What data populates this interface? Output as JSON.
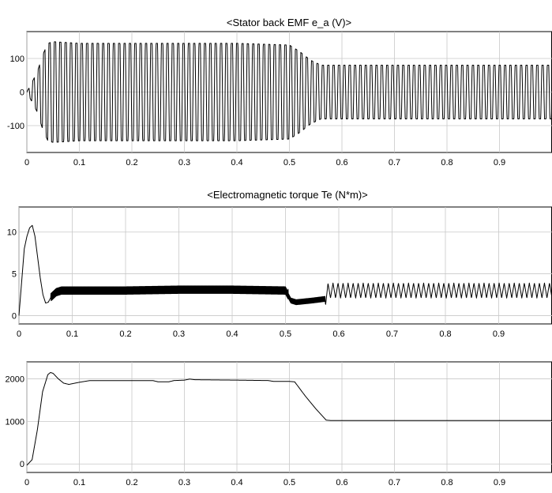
{
  "chart_data": [
    {
      "type": "line",
      "title": "<Stator back EMF e_a (V)>",
      "xlim": [
        0,
        1
      ],
      "ylim": [
        -180,
        180
      ],
      "x_ticks": [
        0,
        0.1,
        0.2,
        0.3,
        0.4,
        0.5,
        0.6,
        0.7,
        0.8,
        0.9
      ],
      "x_tick_labels": [
        "0",
        "0.1",
        "0.2",
        "0.3",
        "0.4",
        "0.5",
        "0.6",
        "0.7",
        "0.8",
        "0.9"
      ],
      "y_ticks": [
        -100,
        0,
        100
      ],
      "y_tick_labels": [
        "-100",
        "0",
        "100"
      ],
      "grid": true,
      "series": [
        {
          "color": "#000000",
          "style": "square-ish oscillation",
          "envelope": [
            [
              0.0,
              0
            ],
            [
              0.01,
              30
            ],
            [
              0.02,
              60
            ],
            [
              0.03,
              110
            ],
            [
              0.04,
              145
            ],
            [
              0.05,
              150
            ],
            [
              0.1,
              145
            ],
            [
              0.2,
              145
            ],
            [
              0.3,
              145
            ],
            [
              0.4,
              145
            ],
            [
              0.5,
              140
            ],
            [
              0.52,
              120
            ],
            [
              0.54,
              95
            ],
            [
              0.56,
              80
            ],
            [
              0.6,
              80
            ],
            [
              0.8,
              80
            ],
            [
              1.0,
              80
            ]
          ],
          "cycles": 98
        }
      ]
    },
    {
      "type": "line",
      "title": "<Electromagnetic torque Te (N*m)>",
      "xlim": [
        0,
        1
      ],
      "ylim": [
        -1,
        13
      ],
      "x_ticks": [
        0,
        0.1,
        0.2,
        0.3,
        0.4,
        0.5,
        0.6,
        0.7,
        0.8,
        0.9
      ],
      "x_tick_labels": [
        "0",
        "0.1",
        "0.2",
        "0.3",
        "0.4",
        "0.5",
        "0.6",
        "0.7",
        "0.8",
        "0.9"
      ],
      "y_ticks": [
        0,
        5,
        10
      ],
      "y_tick_labels": [
        "0",
        "5",
        "10"
      ],
      "grid": true,
      "series": [
        {
          "color": "#000000",
          "points": [
            [
              0.0,
              0
            ],
            [
              0.005,
              4
            ],
            [
              0.01,
              8
            ],
            [
              0.015,
              9.5
            ],
            [
              0.02,
              10.5
            ],
            [
              0.025,
              10.8
            ],
            [
              0.03,
              9.5
            ],
            [
              0.035,
              7
            ],
            [
              0.04,
              4.5
            ],
            [
              0.045,
              2.5
            ],
            [
              0.05,
              1.5
            ],
            [
              0.055,
              1.6
            ],
            [
              0.06,
              2.2
            ],
            [
              0.07,
              2.8
            ],
            [
              0.08,
              3.0
            ],
            [
              0.1,
              3.0
            ],
            [
              0.2,
              3.0
            ],
            [
              0.3,
              3.1
            ],
            [
              0.4,
              3.1
            ],
            [
              0.5,
              3.0
            ],
            [
              0.505,
              2.4
            ],
            [
              0.51,
              1.8
            ],
            [
              0.52,
              1.6
            ],
            [
              0.55,
              1.8
            ],
            [
              0.575,
              2.0
            ],
            [
              0.58,
              3.0
            ],
            [
              1.0,
              3.0
            ]
          ],
          "ripple": [
            {
              "from": 0.06,
              "to": 0.505,
              "amplitude": 0.45
            },
            {
              "from": 0.505,
              "to": 0.575,
              "amplitude": 0.3
            },
            {
              "from": 0.575,
              "to": 1.0,
              "amplitude": 0.9,
              "cycles": 45
            }
          ]
        }
      ]
    },
    {
      "type": "line",
      "title": "",
      "xlim": [
        0,
        1
      ],
      "ylim": [
        -200,
        2400
      ],
      "x_ticks": [
        0,
        0.1,
        0.2,
        0.3,
        0.4,
        0.5,
        0.6,
        0.7,
        0.8,
        0.9
      ],
      "x_tick_labels": [
        "0",
        "0.1",
        "0.2",
        "0.3",
        "0.4",
        "0.5",
        "0.6",
        "0.7",
        "0.8",
        "0.9"
      ],
      "y_ticks": [
        0,
        1000,
        2000
      ],
      "y_tick_labels": [
        "0",
        "1000",
        "2000"
      ],
      "grid": true,
      "series": [
        {
          "color": "#000000",
          "points": [
            [
              0.0,
              -30
            ],
            [
              0.01,
              100
            ],
            [
              0.02,
              800
            ],
            [
              0.03,
              1700
            ],
            [
              0.04,
              2100
            ],
            [
              0.045,
              2150
            ],
            [
              0.05,
              2130
            ],
            [
              0.06,
              2000
            ],
            [
              0.07,
              1900
            ],
            [
              0.08,
              1870
            ],
            [
              0.1,
              1920
            ],
            [
              0.12,
              1960
            ],
            [
              0.2,
              1960
            ],
            [
              0.24,
              1960
            ],
            [
              0.25,
              1930
            ],
            [
              0.27,
              1930
            ],
            [
              0.28,
              1960
            ],
            [
              0.3,
              1970
            ],
            [
              0.31,
              1995
            ],
            [
              0.32,
              1980
            ],
            [
              0.4,
              1970
            ],
            [
              0.46,
              1960
            ],
            [
              0.47,
              1940
            ],
            [
              0.5,
              1940
            ],
            [
              0.51,
              1930
            ],
            [
              0.53,
              1600
            ],
            [
              0.55,
              1300
            ],
            [
              0.57,
              1030
            ],
            [
              0.58,
              1020
            ],
            [
              1.0,
              1020
            ]
          ]
        }
      ]
    }
  ]
}
